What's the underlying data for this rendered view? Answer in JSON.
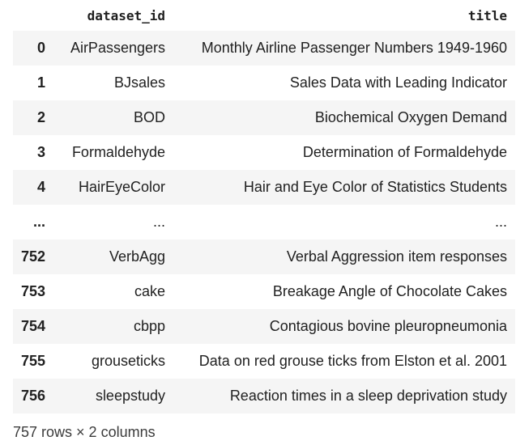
{
  "table": {
    "columns": [
      "",
      "dataset_id",
      "title"
    ],
    "rows": [
      {
        "index": "0",
        "dataset_id": "AirPassengers",
        "title": "Monthly Airline Passenger Numbers 1949-1960"
      },
      {
        "index": "1",
        "dataset_id": "BJsales",
        "title": "Sales Data with Leading Indicator"
      },
      {
        "index": "2",
        "dataset_id": "BOD",
        "title": "Biochemical Oxygen Demand"
      },
      {
        "index": "3",
        "dataset_id": "Formaldehyde",
        "title": "Determination of Formaldehyde"
      },
      {
        "index": "4",
        "dataset_id": "HairEyeColor",
        "title": "Hair and Eye Color of Statistics Students"
      },
      {
        "index": "...",
        "dataset_id": "...",
        "title": "..."
      },
      {
        "index": "752",
        "dataset_id": "VerbAgg",
        "title": "Verbal Aggression item responses"
      },
      {
        "index": "753",
        "dataset_id": "cake",
        "title": "Breakage Angle of Chocolate Cakes"
      },
      {
        "index": "754",
        "dataset_id": "cbpp",
        "title": "Contagious bovine pleuropneumonia"
      },
      {
        "index": "755",
        "dataset_id": "grouseticks",
        "title": "Data on red grouse ticks from Elston et al. 2001"
      },
      {
        "index": "756",
        "dataset_id": "sleepstudy",
        "title": "Reaction times in a sleep deprivation study"
      }
    ]
  },
  "footer": {
    "shape_text": "757 rows × 2 columns"
  },
  "colors": {
    "stripe": "#f5f5f5",
    "text": "#212121"
  }
}
